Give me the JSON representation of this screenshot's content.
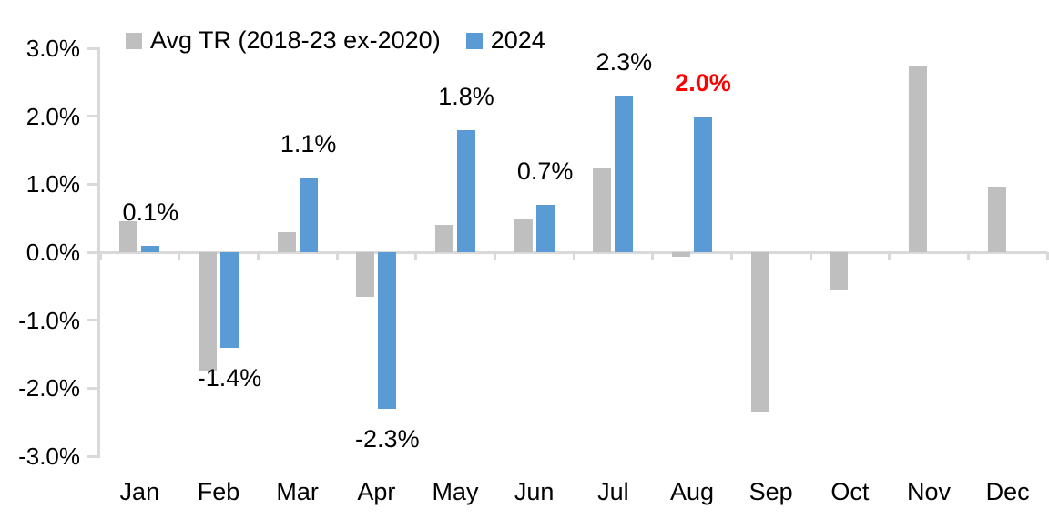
{
  "chart_data": {
    "type": "bar",
    "title": "",
    "xlabel": "",
    "ylabel": "",
    "categories": [
      "Jan",
      "Feb",
      "Mar",
      "Apr",
      "May",
      "Jun",
      "Jul",
      "Aug",
      "Sep",
      "Oct",
      "Nov",
      "Dec"
    ],
    "y_tick_labels": [
      "3.0%",
      "2.0%",
      "1.0%",
      "0.0%",
      "-1.0%",
      "-2.0%",
      "-3.0%"
    ],
    "ylim": [
      -3,
      3
    ],
    "y_tick_step": 1,
    "grid": false,
    "legend_position": "top-left",
    "series": [
      {
        "name": "Avg TR (2018-23 ex-2020)",
        "color": "#BFBFBF",
        "values": [
          0.45,
          -1.75,
          0.3,
          -0.65,
          0.4,
          0.48,
          1.25,
          -0.07,
          -2.35,
          -0.55,
          2.75,
          0.97
        ]
      },
      {
        "name": "2024",
        "color": "#5B9BD5",
        "values": [
          0.1,
          -1.4,
          1.1,
          -2.3,
          1.8,
          0.7,
          2.3,
          2.0,
          null,
          null,
          null,
          null
        ],
        "data_labels": [
          {
            "text": "0.1%",
            "color": "#000000",
            "bold": false
          },
          {
            "text": "-1.4%",
            "color": "#000000",
            "bold": false
          },
          {
            "text": "1.1%",
            "color": "#000000",
            "bold": false
          },
          {
            "text": "-2.3%",
            "color": "#000000",
            "bold": false
          },
          {
            "text": "1.8%",
            "color": "#000000",
            "bold": false
          },
          {
            "text": "0.7%",
            "color": "#000000",
            "bold": false
          },
          {
            "text": "2.3%",
            "color": "#000000",
            "bold": false
          },
          {
            "text": "2.0%",
            "color": "#FF0000",
            "bold": true
          }
        ]
      }
    ],
    "annotations": {
      "highlighted_label": {
        "month": "Aug",
        "text": "2.0%",
        "color": "#FF0000"
      }
    }
  },
  "colors": {
    "axis": "#D9D9D9",
    "gray_series": "#BFBFBF",
    "blue_series": "#5B9BD5",
    "highlight_red": "#FF0000",
    "background": "#FFFFFF",
    "text": "#000000"
  }
}
